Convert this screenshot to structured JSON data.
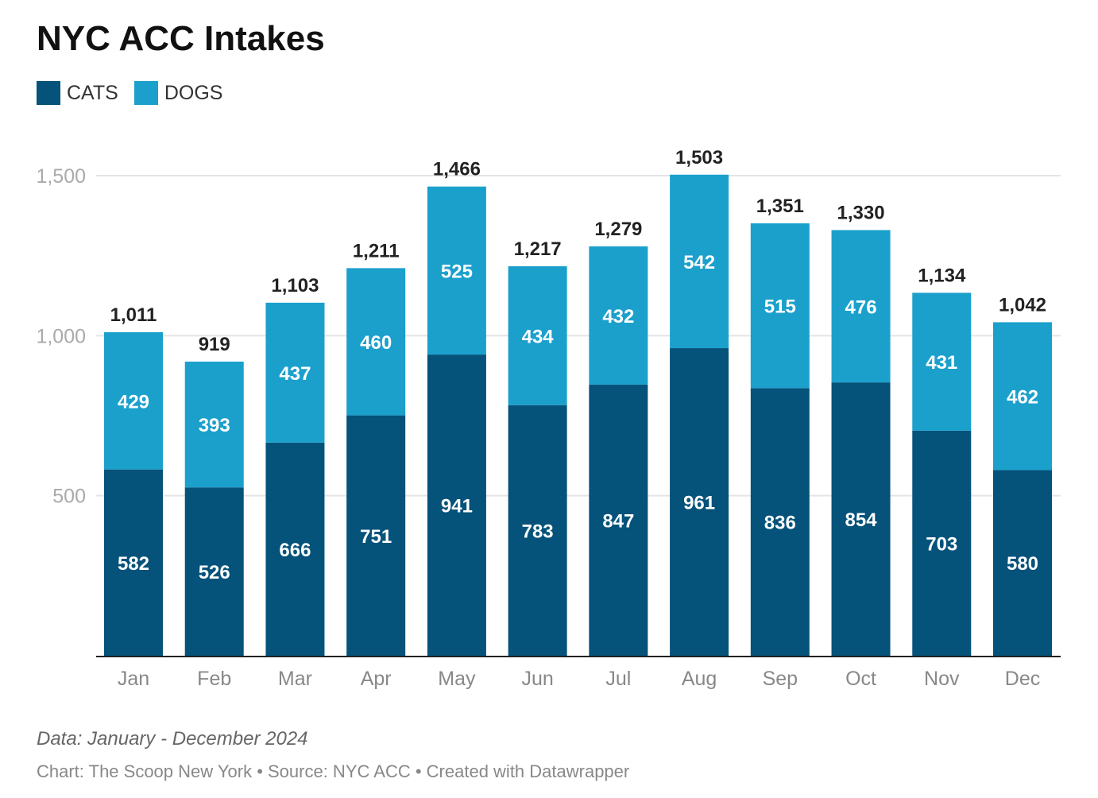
{
  "chart_data": {
    "type": "bar",
    "stacked": true,
    "title": "NYC ACC Intakes",
    "categories": [
      "Jan",
      "Feb",
      "Mar",
      "Apr",
      "May",
      "Jun",
      "Jul",
      "Aug",
      "Sep",
      "Oct",
      "Nov",
      "Dec"
    ],
    "series": [
      {
        "name": "CATS",
        "color": "#05527a",
        "values": [
          582,
          526,
          666,
          751,
          941,
          783,
          847,
          961,
          836,
          854,
          703,
          580
        ]
      },
      {
        "name": "DOGS",
        "color": "#1ba0cc",
        "values": [
          429,
          393,
          437,
          460,
          525,
          434,
          432,
          542,
          515,
          476,
          431,
          462
        ]
      }
    ],
    "totals": [
      "1,011",
      "919",
      "1,103",
      "1,211",
      "1,466",
      "1,217",
      "1,279",
      "1,503",
      "1,351",
      "1,330",
      "1,134",
      "1,042"
    ],
    "yticks": [
      {
        "value": 500,
        "label": "500"
      },
      {
        "value": 1000,
        "label": "1,000"
      },
      {
        "value": 1500,
        "label": "1,500"
      }
    ],
    "ylim": [
      0,
      1500
    ],
    "xlabel": "",
    "ylabel": "",
    "grid": true,
    "legend_position": "top-left"
  },
  "footer": {
    "note": "Data: January - December 2024",
    "credit": "Chart: The Scoop New York • Source: NYC ACC • Created with Datawrapper"
  }
}
